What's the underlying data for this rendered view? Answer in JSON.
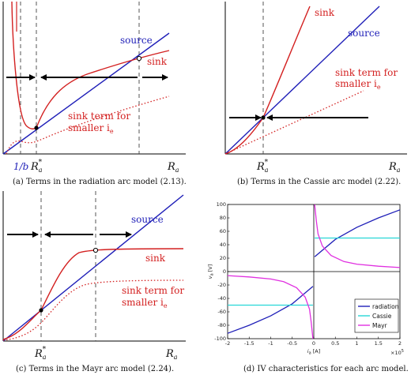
{
  "chart_data": [
    {
      "type": "line",
      "panel": "a",
      "caption": "(a) Terms in the radiation arc model (2.13).",
      "xlabel": "R_a",
      "xticks": [
        "1/b",
        "R_a*"
      ],
      "series": [
        {
          "name": "source",
          "color": "#1f1fb8",
          "style": "solid"
        },
        {
          "name": "sink",
          "color": "#d32020",
          "style": "solid"
        },
        {
          "name": "sink term for smaller i_e",
          "color": "#d32020",
          "style": "dotted"
        }
      ],
      "labels": {
        "source": "source",
        "sink": "sink",
        "sink_small_1": "sink term for",
        "sink_small_2": "smaller i",
        "sink_small_sub": "e",
        "tick_b": "1/b",
        "tick_r": "R",
        "tick_r_sub": "a",
        "tick_r_sup": "*",
        "axis_r": "R",
        "axis_r_sub": "a"
      }
    },
    {
      "type": "line",
      "panel": "b",
      "caption": "(b) Terms in the Cassie arc model (2.22).",
      "xlabel": "R_a",
      "xticks": [
        "R_a*"
      ],
      "labels": {
        "source": "source",
        "sink": "sink",
        "sink_small_1": "sink term for",
        "sink_small_2": "smaller i",
        "sink_small_sub": "e",
        "tick_r": "R",
        "tick_r_sub": "a",
        "tick_r_sup": "*",
        "axis_r": "R",
        "axis_r_sub": "a"
      }
    },
    {
      "type": "line",
      "panel": "c",
      "caption": "(c) Terms in the Mayr arc model (2.24).",
      "xlabel": "R_a",
      "xticks": [
        "R_a*"
      ],
      "labels": {
        "source": "source",
        "sink": "sink",
        "sink_small_1": "sink term for",
        "sink_small_2": "smaller i",
        "sink_small_sub": "e",
        "tick_r": "R",
        "tick_r_sub": "a",
        "tick_r_sup": "*",
        "axis_r": "R",
        "axis_r_sub": "a"
      }
    },
    {
      "type": "line",
      "panel": "d",
      "caption": "(d) IV characteristics for each arc model.",
      "xlabel": "i_a [A]",
      "ylabel": "v_a [V]",
      "xlim": [
        -2,
        2
      ],
      "ylim": [
        -100,
        100
      ],
      "x_multiplier": "×10^5",
      "xticks": [
        -2,
        -1.5,
        -1,
        -0.5,
        0,
        0.5,
        1,
        1.5,
        2
      ],
      "yticks": [
        -100,
        -80,
        -60,
        -40,
        -20,
        0,
        20,
        40,
        60,
        80,
        100
      ],
      "grid": false,
      "legend": "bottom-right",
      "series": [
        {
          "name": "radiation",
          "color": "#1f1fb8",
          "points": [
            [
              0.02,
              22
            ],
            [
              0.5,
              48
            ],
            [
              1.0,
              66
            ],
            [
              1.5,
              80
            ],
            [
              2.0,
              92
            ],
            [
              -0.02,
              -22
            ],
            [
              -0.5,
              -48
            ],
            [
              -1.0,
              -66
            ],
            [
              -1.5,
              -80
            ],
            [
              -2.0,
              -92
            ]
          ]
        },
        {
          "name": "Cassie",
          "color": "#27d7d7",
          "points": [
            [
              0.02,
              50
            ],
            [
              2.0,
              50
            ],
            [
              -0.02,
              -50
            ],
            [
              -2.0,
              -50
            ]
          ]
        },
        {
          "name": "Mayr",
          "color": "#e030e0",
          "points": [
            [
              0.02,
              100
            ],
            [
              0.06,
              75
            ],
            [
              0.1,
              56
            ],
            [
              0.2,
              38
            ],
            [
              0.4,
              24
            ],
            [
              0.7,
              15
            ],
            [
              1.0,
              11
            ],
            [
              1.5,
              8
            ],
            [
              2.0,
              6
            ],
            [
              -0.02,
              -100
            ],
            [
              -0.06,
              -75
            ],
            [
              -0.1,
              -56
            ],
            [
              -0.2,
              -38
            ],
            [
              -0.4,
              -24
            ],
            [
              -0.7,
              -15
            ],
            [
              -1.0,
              -11
            ],
            [
              -1.5,
              -8
            ],
            [
              -2.0,
              -6
            ]
          ]
        }
      ],
      "labels": {
        "ylabel": "v",
        "ylabel_sub": "a",
        "ylabel_unit": " [V]",
        "xlabel": "i",
        "xlabel_sub": "a",
        "xlabel_unit": " [A]",
        "mult": "×10",
        "mult_exp": "5"
      }
    }
  ]
}
